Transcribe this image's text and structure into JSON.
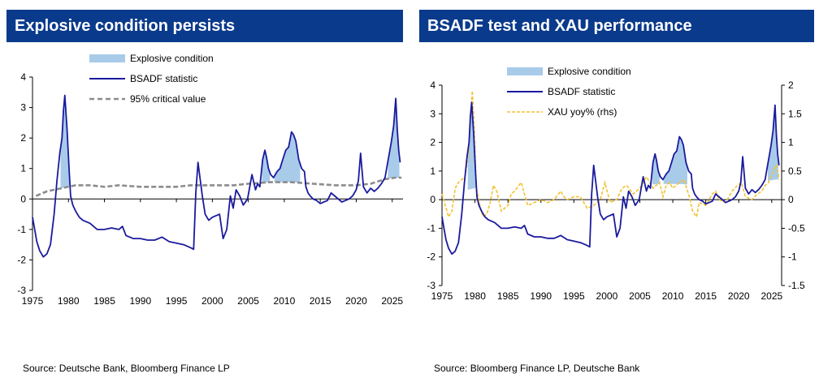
{
  "left": {
    "title": "Explosive condition persists",
    "source": "Source: Deutsche Bank, Bloomberg Finance LP"
  },
  "right": {
    "title": "BSADF test and XAU performance",
    "source": "Source: Bloomberg Finance LP, Deutsche Bank"
  },
  "colors": {
    "title_bar": "#0a3a8c",
    "bsadf": "#1a1a9e",
    "explosive_fill": "#a9cbea",
    "critical": "#8c8c8c",
    "xau": "#f2c230"
  },
  "chart_data": [
    {
      "type": "line",
      "x_ticks": [
        "1975",
        "1980",
        "1985",
        "1990",
        "1995",
        "2000",
        "2005",
        "2010",
        "2015",
        "2020",
        "2025"
      ],
      "y_ticks": [
        "-3",
        "-2",
        "-1",
        "0",
        "1",
        "2",
        "3",
        "4"
      ],
      "xlim": [
        1975,
        2026.5
      ],
      "ylim": [
        -3,
        4
      ],
      "legend_position": "top-center",
      "legend": [
        "Explosive condition",
        "BSADF statistic",
        "95% critical value"
      ],
      "series": [
        {
          "name": "BSADF statistic",
          "style": "solid",
          "x": [
            1975.0,
            1975.3,
            1975.6,
            1976.0,
            1976.5,
            1977.0,
            1977.5,
            1978.0,
            1978.4,
            1978.8,
            1979.1,
            1979.3,
            1979.5,
            1979.8,
            1980.1,
            1980.3,
            1980.6,
            1981.0,
            1981.5,
            1982.0,
            1983.0,
            1984.0,
            1985.0,
            1986.0,
            1987.0,
            1987.5,
            1988.0,
            1989.0,
            1990.0,
            1991.0,
            1992.0,
            1993.0,
            1994.0,
            1995.0,
            1996.0,
            1997.0,
            1997.4,
            1997.7,
            1998.0,
            1998.6,
            1999.0,
            1999.5,
            2000.0,
            2000.5,
            2001.0,
            2001.5,
            2002.0,
            2002.5,
            2002.9,
            2003.3,
            2003.8,
            2004.3,
            2004.9,
            2005.5,
            2006.0,
            2006.3,
            2006.6,
            2007.0,
            2007.3,
            2007.5,
            2007.8,
            2008.1,
            2008.5,
            2009.0,
            2009.4,
            2009.8,
            2010.2,
            2010.6,
            2011.0,
            2011.3,
            2011.6,
            2012.0,
            2012.4,
            2012.8,
            2013.0,
            2013.3,
            2013.6,
            2014.0,
            2014.5,
            2015.0,
            2015.5,
            2016.0,
            2016.5,
            2017.0,
            2017.5,
            2018.0,
            2018.5,
            2019.0,
            2019.5,
            2020.0,
            2020.3,
            2020.6,
            2021.0,
            2021.5,
            2022.0,
            2022.5,
            2023.0,
            2023.5,
            2024.0,
            2024.3,
            2024.6,
            2024.9,
            2025.2,
            2025.5,
            2025.7,
            2025.9,
            2026.1
          ],
          "y": [
            -0.6,
            -1.0,
            -1.4,
            -1.7,
            -1.9,
            -1.8,
            -1.5,
            -0.5,
            0.6,
            1.5,
            2.0,
            2.9,
            3.4,
            2.3,
            0.9,
            0.1,
            -0.2,
            -0.4,
            -0.6,
            -0.7,
            -0.8,
            -1.0,
            -1.0,
            -0.95,
            -1.0,
            -0.9,
            -1.2,
            -1.3,
            -1.3,
            -1.35,
            -1.35,
            -1.25,
            -1.4,
            -1.45,
            -1.5,
            -1.6,
            -1.65,
            0.2,
            1.2,
            0.1,
            -0.5,
            -0.7,
            -0.6,
            -0.55,
            -0.5,
            -1.3,
            -1.0,
            0.1,
            -0.3,
            0.3,
            0.1,
            -0.2,
            0.0,
            0.8,
            0.3,
            0.5,
            0.4,
            1.3,
            1.6,
            1.4,
            1.0,
            0.8,
            0.7,
            0.9,
            1.0,
            1.3,
            1.6,
            1.7,
            2.2,
            2.1,
            1.9,
            1.3,
            1.0,
            0.9,
            0.4,
            0.2,
            0.1,
            0.0,
            -0.05,
            -0.15,
            -0.1,
            -0.05,
            0.2,
            0.1,
            0.0,
            -0.1,
            -0.05,
            0.0,
            0.1,
            0.3,
            0.6,
            1.5,
            0.4,
            0.2,
            0.35,
            0.25,
            0.35,
            0.5,
            0.7,
            1.1,
            1.5,
            1.9,
            2.4,
            3.3,
            2.3,
            1.6,
            1.2
          ]
        },
        {
          "name": "95% critical value",
          "style": "dashed",
          "x": [
            1975.5,
            1977.0,
            1979.0,
            1981.0,
            1983.0,
            1985.0,
            1987.0,
            1990.0,
            1993.0,
            1995.0,
            1997.0,
            2000.0,
            2003.0,
            2005.0,
            2008.0,
            2011.0,
            2014.0,
            2017.0,
            2020.0,
            2022.0,
            2024.0,
            2025.5,
            2026.3
          ],
          "y": [
            0.1,
            0.25,
            0.35,
            0.45,
            0.45,
            0.4,
            0.45,
            0.4,
            0.4,
            0.4,
            0.45,
            0.45,
            0.45,
            0.5,
            0.55,
            0.55,
            0.5,
            0.45,
            0.45,
            0.5,
            0.65,
            0.7,
            0.7
          ]
        }
      ],
      "explosive_periods": [
        [
          1978.9,
          1980.1
        ],
        [
          2006.9,
          2008.0
        ],
        [
          2008.6,
          2012.2
        ],
        [
          2024.4,
          2026.0
        ]
      ]
    },
    {
      "type": "line",
      "x_ticks": [
        "1975",
        "1980",
        "1985",
        "1990",
        "1995",
        "2000",
        "2005",
        "2010",
        "2015",
        "2020",
        "2025"
      ],
      "y_ticks": [
        "-3",
        "-2",
        "-1",
        "0",
        "1",
        "2",
        "3",
        "4"
      ],
      "y2_ticks": [
        "-1.5",
        "-1",
        "-0.5",
        "0",
        "0.5",
        "1",
        "1.5",
        "2"
      ],
      "xlim": [
        1975,
        2026.5
      ],
      "ylim": [
        -3,
        4
      ],
      "y2lim": [
        -1.5,
        2
      ],
      "legend_position": "top-center",
      "legend": [
        "Explosive condition",
        "BSADF statistic",
        "XAU yoy% (rhs)"
      ],
      "series": [
        {
          "name": "BSADF statistic",
          "style": "solid",
          "same_as_left": true
        },
        {
          "name": "XAU yoy% (rhs)",
          "style": "dashed",
          "axis": "right",
          "x": [
            1975.0,
            1975.5,
            1976.0,
            1976.5,
            1977.0,
            1977.5,
            1978.0,
            1978.5,
            1979.0,
            1979.3,
            1979.6,
            1979.9,
            1980.2,
            1980.5,
            1980.9,
            1981.3,
            1981.8,
            1982.3,
            1982.8,
            1983.3,
            1984.0,
            1985.0,
            1985.5,
            1986.0,
            1987.0,
            1987.5,
            1988.0,
            1989.0,
            1990.0,
            1991.0,
            1992.0,
            1993.0,
            1993.5,
            1994.0,
            1995.0,
            1996.0,
            1997.0,
            1998.0,
            1999.0,
            1999.7,
            2000.5,
            2001.5,
            2002.3,
            2003.0,
            2004.0,
            2005.0,
            2006.0,
            2006.5,
            2007.0,
            2008.0,
            2008.5,
            2009.0,
            2009.5,
            2010.0,
            2011.0,
            2011.7,
            2012.5,
            2013.0,
            2013.6,
            2014.0,
            2015.0,
            2016.0,
            2016.5,
            2017.0,
            2018.0,
            2019.0,
            2019.8,
            2020.4,
            2021.0,
            2022.0,
            2022.8,
            2023.5,
            2024.0,
            2024.5,
            2025.0,
            2025.4,
            2025.8,
            2026.1
          ],
          "y": [
            0.1,
            -0.1,
            -0.3,
            -0.2,
            0.2,
            0.3,
            0.35,
            0.4,
            0.8,
            1.4,
            1.9,
            1.2,
            0.2,
            0.05,
            -0.2,
            -0.3,
            -0.25,
            -0.05,
            0.25,
            0.15,
            -0.2,
            -0.1,
            0.1,
            0.15,
            0.3,
            0.1,
            -0.1,
            -0.05,
            0.0,
            -0.05,
            0.0,
            0.15,
            0.05,
            0.0,
            0.05,
            0.05,
            -0.15,
            -0.1,
            0.0,
            0.3,
            -0.05,
            0.0,
            0.2,
            0.25,
            0.1,
            0.2,
            0.4,
            0.3,
            0.2,
            0.3,
            0.05,
            0.25,
            0.3,
            0.2,
            0.3,
            0.35,
            0.05,
            -0.2,
            -0.3,
            -0.05,
            -0.1,
            0.1,
            0.15,
            0.0,
            -0.05,
            0.15,
            0.25,
            0.3,
            0.05,
            0.0,
            0.1,
            0.15,
            0.25,
            0.3,
            0.45,
            0.55,
            0.6,
            0.35
          ]
        }
      ],
      "explosive_periods": [
        [
          1978.9,
          1980.1
        ],
        [
          2006.9,
          2008.0
        ],
        [
          2008.6,
          2012.2
        ],
        [
          2024.4,
          2026.0
        ]
      ]
    }
  ]
}
